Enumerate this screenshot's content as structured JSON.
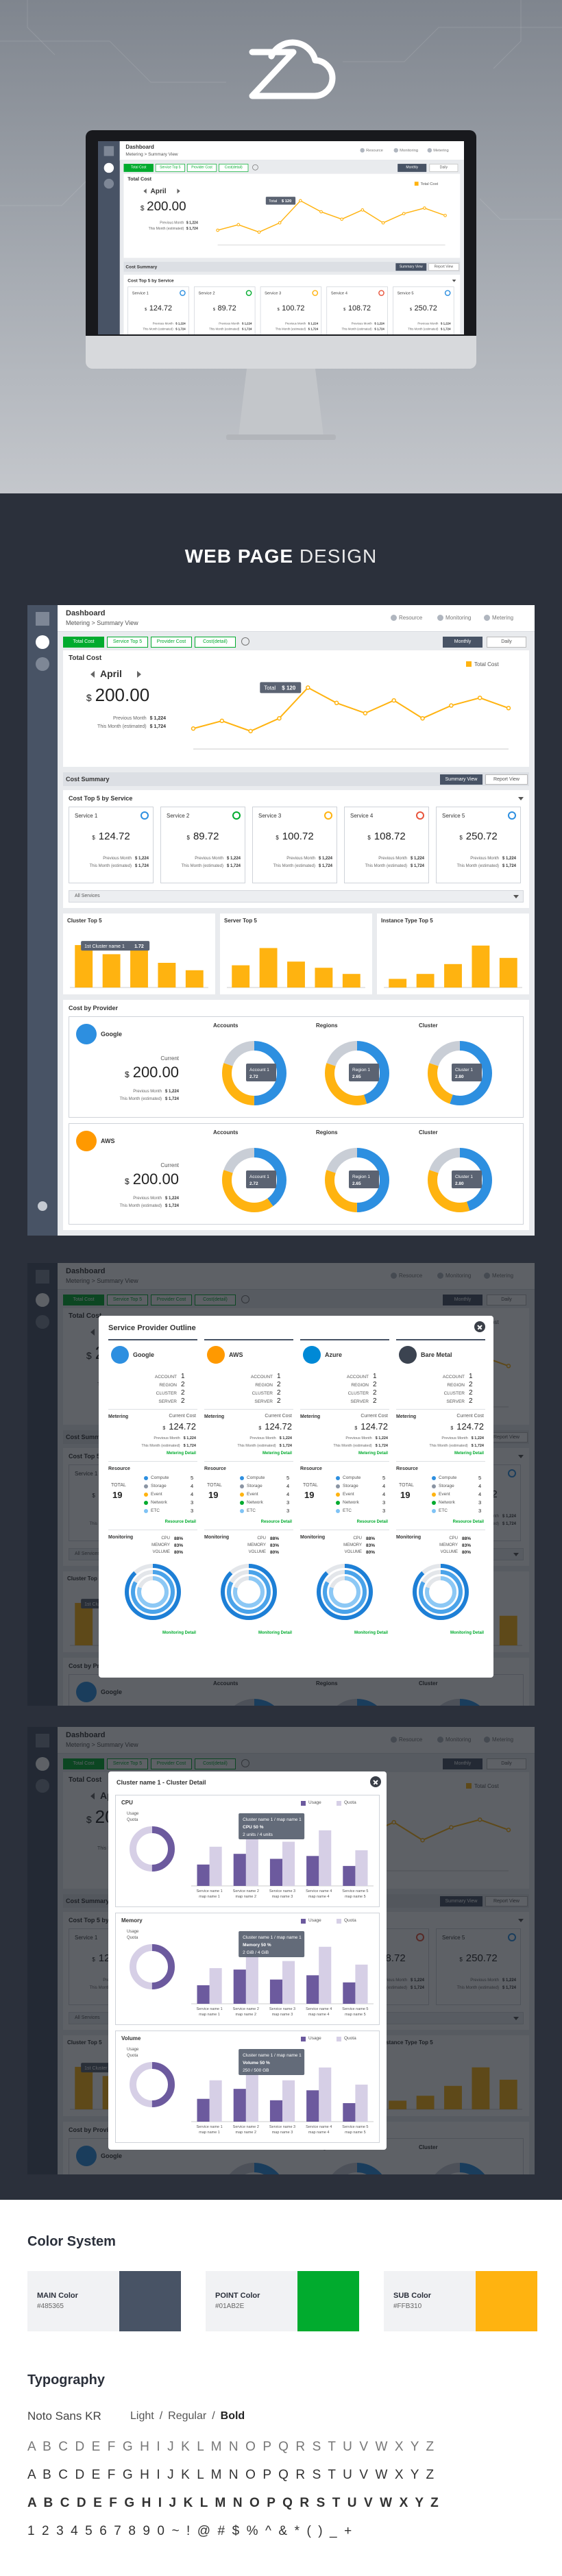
{
  "design_title": {
    "bold": "WEB PAGE",
    "light": "DESIGN"
  },
  "dashboard": {
    "title": "Dashboard",
    "breadcrumb": "Metering  >  Summary View",
    "nav": [
      "Resource",
      "Monitoring",
      "Metering"
    ],
    "tabs": [
      "Total Cost",
      "Service Top 5",
      "Provider Cost",
      "Cost(detail)"
    ],
    "period": [
      "Monthly",
      "Daily"
    ],
    "rows": [
      {
        "label": "Previous Month",
        "value": "$ 1,224"
      },
      {
        "label": "This Month (estimated)",
        "value": "$ 1,724"
      }
    ],
    "currency": "$",
    "total_cost": {
      "title": "Total Cost",
      "month": "April",
      "amount": "200.00",
      "chart": {
        "type": "line",
        "legend": "Total Cost",
        "color": "#FFB310",
        "values": [
          40,
          55,
          35,
          60,
          120,
          90,
          70,
          95,
          60,
          85,
          100,
          80
        ],
        "ylim": [
          0,
          150
        ],
        "tooltip": {
          "label": "Total",
          "value": "$ 120"
        }
      }
    },
    "summary": {
      "title": "Cost Summary",
      "buttons": [
        "Summary View",
        "Report View"
      ]
    },
    "services": {
      "title": "Cost Top 5 by Service",
      "dropdown": "All Services",
      "items": [
        {
          "name": "Service 1",
          "amount": "124.72",
          "color": "#2d8fe0"
        },
        {
          "name": "Service 2",
          "amount": "89.72",
          "color": "#01AB2E"
        },
        {
          "name": "Service 3",
          "amount": "100.72",
          "color": "#FFB310"
        },
        {
          "name": "Service 4",
          "amount": "108.72",
          "color": "#e8553d"
        },
        {
          "name": "Service 5",
          "amount": "250.72",
          "color": "#2d8fe0"
        }
      ]
    },
    "top5": [
      {
        "title": "Cluster Top 5",
        "type": "bar",
        "color": "#FFB310",
        "values": [
          1.72,
          1.35,
          1.5,
          1.0,
          0.7
        ],
        "ylim": [
          0,
          2
        ],
        "tooltip": [
          "1st Cluster name 1",
          "1.72"
        ]
      },
      {
        "title": "Server Top 5",
        "type": "bar",
        "color": "#FFB310",
        "values": [
          0.9,
          1.6,
          1.05,
          0.8,
          0.55
        ],
        "ylim": [
          0,
          2
        ]
      },
      {
        "title": "Instance Type Top 5",
        "type": "bar",
        "color": "#FFB310",
        "values": [
          0.35,
          0.55,
          0.95,
          1.7,
          1.2
        ],
        "ylim": [
          0,
          2
        ]
      }
    ],
    "providers": {
      "title": "Cost by Provider",
      "current": "Current",
      "donut_colors": [
        "#2d8fe0",
        "#FFB310",
        "#c9ced6"
      ],
      "items": [
        {
          "name": "Google",
          "color": "#2d8fe0",
          "amount": "200.00",
          "donuts": [
            {
              "title": "Accounts",
              "type": "pie",
              "values": [
                50,
                30,
                20
              ],
              "tooltip": [
                "Account 1",
                "2.72"
              ]
            },
            {
              "title": "Regions",
              "type": "pie",
              "values": [
                45,
                35,
                20
              ],
              "tooltip": [
                "Region 1",
                "2.65"
              ]
            },
            {
              "title": "Cluster",
              "type": "pie",
              "values": [
                55,
                25,
                20
              ],
              "tooltip": [
                "Cluster 1",
                "2.80"
              ]
            }
          ]
        },
        {
          "name": "AWS",
          "color": "#FF9900",
          "amount": "200.00",
          "donuts": [
            {
              "title": "Accounts",
              "type": "pie",
              "values": [
                40,
                40,
                20
              ],
              "tooltip": [
                "Account 1",
                "2.72"
              ]
            },
            {
              "title": "Regions",
              "type": "pie",
              "values": [
                50,
                30,
                20
              ],
              "tooltip": [
                "Region 1",
                "2.65"
              ]
            },
            {
              "title": "Cluster",
              "type": "pie",
              "values": [
                45,
                35,
                20
              ],
              "tooltip": [
                "Cluster 1",
                "2.80"
              ]
            }
          ]
        }
      ]
    }
  },
  "outline": {
    "title": "Service Provider Outline",
    "stat_labels": [
      "ACCOUNT",
      "REGION",
      "CLUSTER",
      "SERVER"
    ],
    "metering": "Metering",
    "current_cost": "Current Cost",
    "metering_detail": "Metering Detail",
    "resource": "Resource",
    "total": "TOTAL",
    "resource_types": [
      "Compute",
      "Storage",
      "Event",
      "Network",
      "ETC"
    ],
    "resource_colors": [
      "#2d8fe0",
      "#8a94a3",
      "#FFB310",
      "#01AB2E",
      "#7fc3f5"
    ],
    "resource_detail": "Resource Detail",
    "monitoring": "Monitoring",
    "metrics": [
      "CPU",
      "MEMORY",
      "VOLUME"
    ],
    "ring_colors": [
      "#1d7fd6",
      "#4aa3ea",
      "#8cc8f5"
    ],
    "monitoring_detail": "Monitoring Detail",
    "columns": [
      {
        "name": "Google",
        "color": "#2d8fe0",
        "stats": [
          1,
          2,
          2,
          2
        ],
        "amount": "124.72",
        "total": 19,
        "resources": [
          5,
          4,
          4,
          3,
          3
        ],
        "usage": [
          88,
          83,
          80
        ],
        "usage_labels": [
          "88%",
          "83%",
          "80%"
        ]
      },
      {
        "name": "AWS",
        "color": "#FF9900",
        "stats": [
          1,
          2,
          2,
          2
        ],
        "amount": "124.72",
        "total": 19,
        "resources": [
          5,
          4,
          4,
          3,
          3
        ],
        "usage": [
          88,
          83,
          80
        ],
        "usage_labels": [
          "88%",
          "83%",
          "80%"
        ]
      },
      {
        "name": "Azure",
        "color": "#0089d6",
        "stats": [
          1,
          2,
          2,
          2
        ],
        "amount": "124.72",
        "total": 19,
        "resources": [
          5,
          4,
          4,
          3,
          3
        ],
        "usage": [
          88,
          83,
          80
        ],
        "usage_labels": [
          "88%",
          "83%",
          "80%"
        ]
      },
      {
        "name": "Bare Metal",
        "color": "#3b4350",
        "stats": [
          1,
          2,
          2,
          2
        ],
        "amount": "124.72",
        "total": 19,
        "resources": [
          5,
          4,
          4,
          3,
          3
        ],
        "usage": [
          88,
          83,
          80
        ],
        "usage_labels": [
          "88%",
          "83%",
          "80%"
        ]
      }
    ]
  },
  "cluster_detail": {
    "title": "Cluster name 1 - Cluster Detail",
    "legend": [
      "Usage",
      "Quota"
    ],
    "colors": [
      "#6c5a9e",
      "#d6cfe6"
    ],
    "group_labels": [
      "Service name 1",
      "Service name 2",
      "Service name 3",
      "Service name 4",
      "Service name 5"
    ],
    "sub_labels": [
      "map name 1",
      "map name 2",
      "map name 3",
      "map name 4",
      "map name 5"
    ],
    "ylim": [
      0,
      100
    ],
    "panels": [
      {
        "title": "CPU",
        "type": "bar",
        "ratio": 50,
        "usage": [
          30,
          45,
          38,
          42,
          28
        ],
        "quota": [
          55,
          90,
          62,
          78,
          50
        ],
        "tooltip": [
          "Cluster name 1 / map name 1",
          "CPU 50 %",
          "2 units / 4 units"
        ]
      },
      {
        "title": "Memory",
        "type": "bar",
        "ratio": 50,
        "usage": [
          26,
          48,
          34,
          40,
          30
        ],
        "quota": [
          50,
          88,
          60,
          80,
          55
        ],
        "tooltip": [
          "Cluster name 1 / map name 1",
          "Memory 50 %",
          "2 GiB / 4 GiB"
        ]
      },
      {
        "title": "Volume",
        "type": "bar",
        "ratio": 50,
        "usage": [
          32,
          46,
          30,
          44,
          26
        ],
        "quota": [
          58,
          92,
          58,
          76,
          52
        ],
        "tooltip": [
          "Cluster name 1 / map name 1",
          "Volume 50 %",
          "250 / 500 GB"
        ]
      }
    ]
  },
  "color_system": {
    "title": "Color System",
    "colors": [
      {
        "name": "MAIN Color",
        "hex": "#485365"
      },
      {
        "name": "POINT Color",
        "hex": "#01AB2E"
      },
      {
        "name": "SUB Color",
        "hex": "#FFB310"
      }
    ]
  },
  "typography": {
    "title": "Typography",
    "font": "Noto Sans KR",
    "weights": [
      "Light",
      "Regular",
      "Bold"
    ],
    "separator": "/",
    "rows": [
      "A B C D E F G H I J K L M N O P Q R S T U V W X Y Z",
      "A B C D E F G H I J K L M N O P Q R S T U V W X Y Z",
      "A B C D E F G H I J K L M N O P Q R S T U V W X Y Z",
      "1 2 3 4 5 6 7 8 9 0 ~ ! @ # $ % ^ & * ( ) _ +"
    ]
  }
}
